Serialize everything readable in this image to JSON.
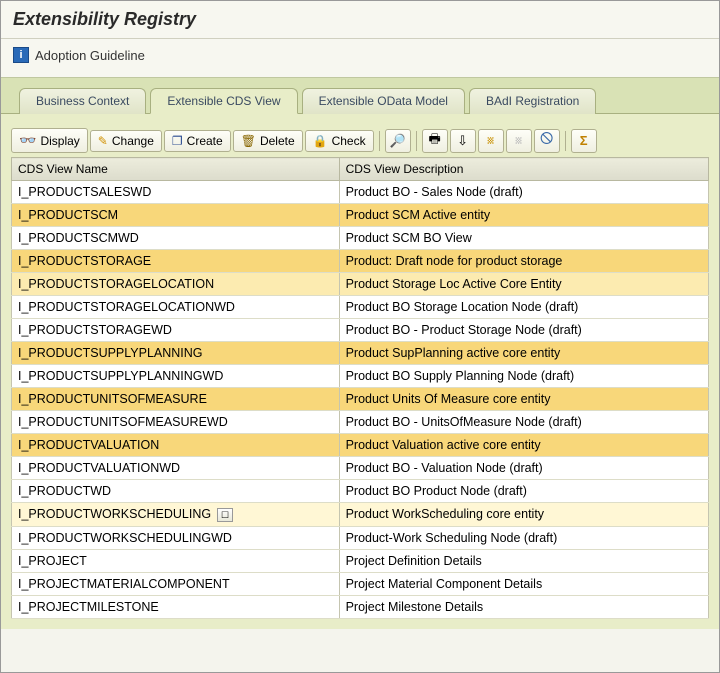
{
  "header": {
    "title": "Extensibility Registry",
    "guideline_label": "Adoption Guideline"
  },
  "tabs": [
    {
      "label": "Business Context",
      "active": false
    },
    {
      "label": "Extensible CDS View",
      "active": true
    },
    {
      "label": "Extensible OData Model",
      "active": false
    },
    {
      "label": "BAdI Registration",
      "active": false
    }
  ],
  "toolbar": {
    "display": "Display",
    "change": "Change",
    "create": "Create",
    "delete": "Delete",
    "check": "Check"
  },
  "table": {
    "columns": [
      "CDS View Name",
      "CDS View Description"
    ],
    "col_widths": [
      "47%",
      "53%"
    ],
    "rows": [
      {
        "name": "I_PRODUCTSALESWD",
        "desc": "Product BO - Sales Node (draft)",
        "hl": ""
      },
      {
        "name": "I_PRODUCTSCM",
        "desc": "Product SCM Active entity",
        "hl": "strong"
      },
      {
        "name": "I_PRODUCTSCMWD",
        "desc": "Product SCM BO View",
        "hl": ""
      },
      {
        "name": "I_PRODUCTSTORAGE",
        "desc": "Product: Draft node for product storage",
        "hl": "strong"
      },
      {
        "name": "I_PRODUCTSTORAGELOCATION",
        "desc": "Product Storage Loc Active Core Entity",
        "hl": "mild"
      },
      {
        "name": "I_PRODUCTSTORAGELOCATIONWD",
        "desc": "Product BO Storage Location Node (draft)",
        "hl": ""
      },
      {
        "name": "I_PRODUCTSTORAGEWD",
        "desc": "Product BO - Product Storage Node (draft)",
        "hl": ""
      },
      {
        "name": "I_PRODUCTSUPPLYPLANNING",
        "desc": "Product SupPlanning active core entity",
        "hl": "strong"
      },
      {
        "name": "I_PRODUCTSUPPLYPLANNINGWD",
        "desc": "Product BO Supply Planning Node (draft)",
        "hl": ""
      },
      {
        "name": "I_PRODUCTUNITSOFMEASURE",
        "desc": "Product Units Of Measure core entity",
        "hl": "strong"
      },
      {
        "name": "I_PRODUCTUNITSOFMEASUREWD",
        "desc": "Product BO - UnitsOfMeasure Node (draft)",
        "hl": ""
      },
      {
        "name": "I_PRODUCTVALUATION",
        "desc": "Product Valuation active core entity",
        "hl": "strong"
      },
      {
        "name": "I_PRODUCTVALUATIONWD",
        "desc": "Product BO - Valuation Node (draft)",
        "hl": ""
      },
      {
        "name": "I_PRODUCTWD",
        "desc": "Product BO Product Node (draft)",
        "hl": ""
      },
      {
        "name": "I_PRODUCTWORKSCHEDULING",
        "desc": "Product WorkScheduling core entity",
        "hl": "light",
        "btn": true
      },
      {
        "name": "I_PRODUCTWORKSCHEDULINGWD",
        "desc": "Product-Work Scheduling Node (draft)",
        "hl": ""
      },
      {
        "name": "I_PROJECT",
        "desc": "Project Definition Details",
        "hl": ""
      },
      {
        "name": "I_PROJECTMATERIALCOMPONENT",
        "desc": "Project Material Component Details",
        "hl": ""
      },
      {
        "name": "I_PROJECTMILESTONE",
        "desc": "Project Milestone Details",
        "hl": ""
      }
    ]
  },
  "colors": {
    "hl_strong": "#f8d77a",
    "hl_mild": "#fcebb0",
    "hl_light": "#fff7d5",
    "tab_bg": "#d9e2b5",
    "content_bg": "#e8edc8"
  }
}
